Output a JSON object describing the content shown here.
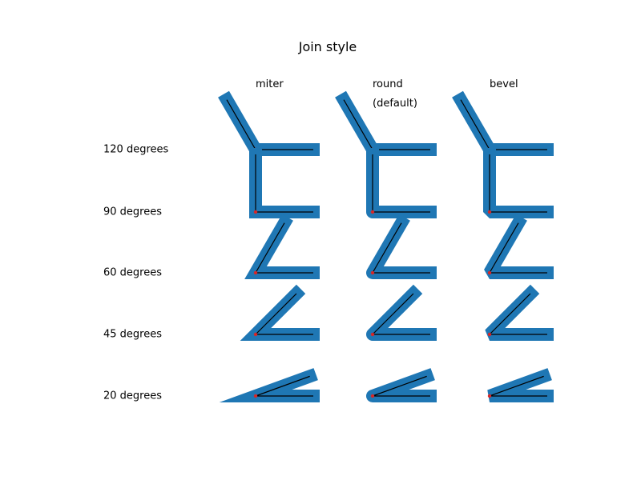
{
  "figure": {
    "title": "Join style",
    "columns": [
      {
        "label": "miter",
        "sub_label": "",
        "join": "miter"
      },
      {
        "label": "round",
        "sub_label": "(default)",
        "join": "round"
      },
      {
        "label": "bevel",
        "sub_label": "",
        "join": "bevel"
      }
    ],
    "rows": [
      {
        "label": "120 degrees",
        "angle": 120
      },
      {
        "label": "90 degrees",
        "angle": 90
      },
      {
        "label": "60 degrees",
        "angle": 60
      },
      {
        "label": "45 degrees",
        "angle": 45
      },
      {
        "label": "20 degrees",
        "angle": 20
      }
    ],
    "colors": {
      "thick_line": "#1f77b4",
      "thin_line": "#000000",
      "vertex_dot": "#d62728"
    }
  }
}
